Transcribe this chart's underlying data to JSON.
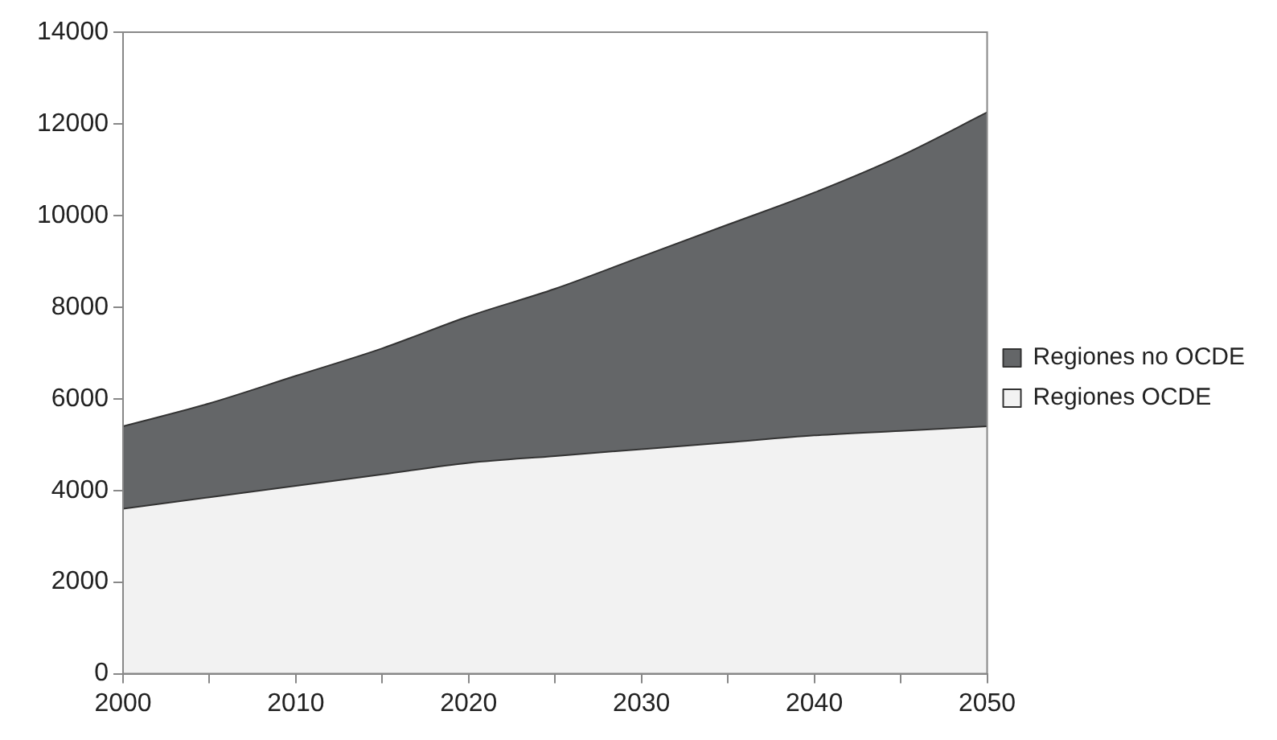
{
  "chart_data": {
    "type": "area",
    "stacked": true,
    "x": [
      2000,
      2005,
      2010,
      2015,
      2020,
      2025,
      2030,
      2035,
      2040,
      2045,
      2050
    ],
    "series": [
      {
        "name": "Regiones OCDE",
        "color": "#f2f2f2",
        "values": [
          3600,
          3850,
          4100,
          4350,
          4600,
          4750,
          4900,
          5050,
          5200,
          5300,
          5400
        ]
      },
      {
        "name": "Regiones no OCDE",
        "color": "#646668",
        "values": [
          1800,
          2050,
          2400,
          2750,
          3200,
          3650,
          4200,
          4750,
          5300,
          6000,
          6850
        ]
      }
    ],
    "xlim": [
      2000,
      2050
    ],
    "xticks": [
      2000,
      {
        "value": 2005,
        "label": null
      },
      2010,
      {
        "value": 2015,
        "label": null
      },
      2020,
      {
        "value": 2025,
        "label": null
      },
      2030,
      {
        "value": 2035,
        "label": null
      },
      2040,
      {
        "value": 2045,
        "label": null
      },
      2050
    ],
    "ylim": [
      0,
      14000
    ],
    "yticks": [
      0,
      2000,
      4000,
      6000,
      8000,
      10000,
      12000,
      14000
    ],
    "grid": false,
    "legend": "right"
  }
}
